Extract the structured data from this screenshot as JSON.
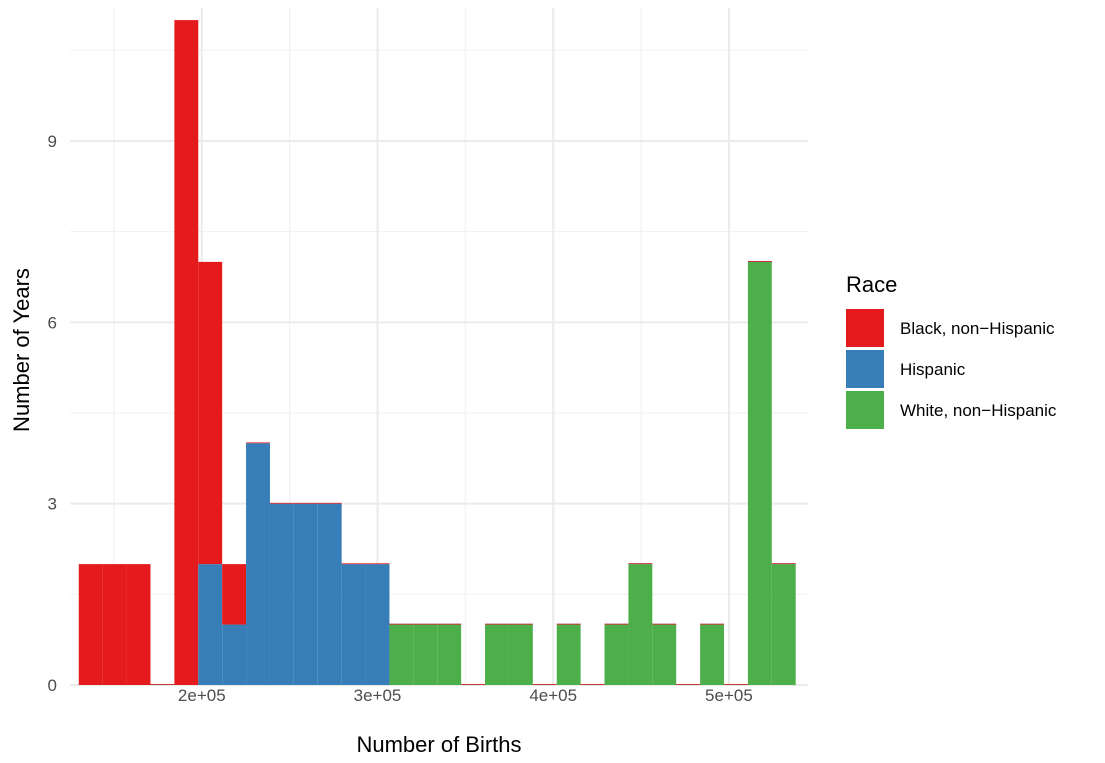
{
  "chart_data": {
    "type": "histogram",
    "xlabel": "Number of Births",
    "ylabel": "Number of Years",
    "legend_title": "Race",
    "legend_position": "right",
    "grid": true,
    "xlim": [
      125000,
      545000
    ],
    "ylim": [
      0,
      11.2
    ],
    "x_ticks": [
      200000,
      300000,
      400000,
      500000
    ],
    "x_tick_labels": [
      "2e+05",
      "3e+05",
      "4e+05",
      "5e+05"
    ],
    "y_ticks": [
      0,
      3,
      6,
      9
    ],
    "y_tick_labels": [
      "0",
      "3",
      "6",
      "9"
    ],
    "bin_width": 13600,
    "bin_centers": [
      136800,
      150400,
      164000,
      177600,
      191200,
      204800,
      218400,
      232000,
      245600,
      259200,
      272800,
      286400,
      300000,
      313600,
      327200,
      340800,
      354400,
      368000,
      381600,
      395200,
      408800,
      422400,
      436000,
      449600,
      463200,
      476800,
      490400,
      504000,
      517600,
      531200
    ],
    "series": [
      {
        "name": "Black, non−Hispanic",
        "color": "#E41A1C",
        "values": [
          2,
          2,
          2,
          0,
          11,
          5,
          1,
          0,
          0,
          0,
          0,
          0,
          0,
          0,
          0,
          0,
          0,
          0,
          0,
          0,
          0,
          0,
          0,
          0,
          0,
          0,
          0,
          0,
          0,
          0
        ]
      },
      {
        "name": "Hispanic",
        "color": "#377EB8",
        "values": [
          0,
          0,
          0,
          0,
          0,
          2,
          1,
          4,
          3,
          3,
          3,
          2,
          2,
          0,
          0,
          0,
          0,
          0,
          0,
          0,
          0,
          0,
          0,
          0,
          0,
          0,
          0,
          0,
          0,
          0
        ]
      },
      {
        "name": "White, non−Hispanic",
        "color": "#4DAF4A",
        "values": [
          0,
          0,
          0,
          0,
          0,
          0,
          0,
          0,
          0,
          0,
          0,
          0,
          0,
          1,
          1,
          1,
          0,
          1,
          1,
          0,
          1,
          0,
          1,
          2,
          1,
          0,
          1,
          0,
          7,
          2
        ]
      }
    ]
  },
  "colors": {
    "background": "#ffffff",
    "grid_major": "#ebebeb",
    "grid_minor": "#f2f2f2"
  }
}
